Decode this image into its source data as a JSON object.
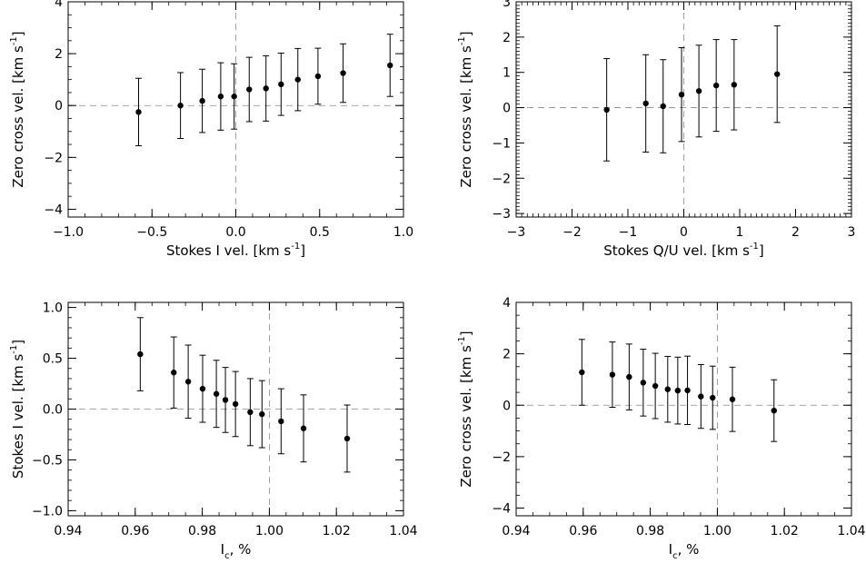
{
  "chart_data": [
    {
      "type": "scatter",
      "xlabel": "Stokes I vel. [km s",
      "xlabel_sup": "-1",
      "xlabel_end": "]",
      "ylabel": "Zero cross vel. [km s",
      "ylabel_sup": "-1",
      "ylabel_end": "]",
      "xlim": [
        -1.0,
        1.0
      ],
      "ylim": [
        -4.3,
        4.0
      ],
      "xticks": [
        -1.0,
        -0.5,
        0.0,
        0.5,
        1.0
      ],
      "xtick_labels": [
        "−1.0",
        "−0.5",
        "0.0",
        "0.5",
        "1.0"
      ],
      "yticks": [
        -4,
        -2,
        0,
        2,
        4
      ],
      "ytick_labels": [
        "−4",
        "−2",
        "0",
        "2",
        "4"
      ],
      "x_minor": 0.1,
      "y_minor": 0.5,
      "ref_x": 0,
      "ref_y": 0,
      "points": [
        {
          "x": -0.58,
          "y": -0.25,
          "err": 1.3
        },
        {
          "x": -0.33,
          "y": 0.0,
          "err": 1.27
        },
        {
          "x": -0.2,
          "y": 0.18,
          "err": 1.22
        },
        {
          "x": -0.09,
          "y": 0.35,
          "err": 1.3
        },
        {
          "x": -0.01,
          "y": 0.35,
          "err": 1.26
        },
        {
          "x": 0.08,
          "y": 0.62,
          "err": 1.24
        },
        {
          "x": 0.18,
          "y": 0.66,
          "err": 1.26
        },
        {
          "x": 0.27,
          "y": 0.82,
          "err": 1.2
        },
        {
          "x": 0.37,
          "y": 1.0,
          "err": 1.2
        },
        {
          "x": 0.49,
          "y": 1.13,
          "err": 1.08
        },
        {
          "x": 0.64,
          "y": 1.25,
          "err": 1.13
        },
        {
          "x": 0.92,
          "y": 1.55,
          "err": 1.2
        }
      ]
    },
    {
      "type": "scatter",
      "xlabel": "Stokes Q/U vel. [km s",
      "xlabel_sup": "-1",
      "xlabel_end": "]",
      "ylabel": "Zero cross vel. [km s",
      "ylabel_sup": "-1",
      "ylabel_end": "]",
      "xlim": [
        -3,
        3
      ],
      "ylim": [
        -3.1,
        3.0
      ],
      "xticks": [
        -3,
        -2,
        -1,
        0,
        1,
        2,
        3
      ],
      "xtick_labels": [
        "−3",
        "−2",
        "−1",
        "0",
        "1",
        "2",
        "3"
      ],
      "yticks": [
        -3,
        -2,
        -1,
        0,
        1,
        2,
        3
      ],
      "ytick_labels": [
        "−3",
        "−2",
        "−1",
        "0",
        "1",
        "2",
        "3"
      ],
      "x_minor": 0.1,
      "y_minor": 0.1,
      "ref_x": 0,
      "ref_y": 0,
      "points": [
        {
          "x": -1.38,
          "y": -0.06,
          "err": 1.45
        },
        {
          "x": -0.68,
          "y": 0.12,
          "err": 1.38
        },
        {
          "x": -0.37,
          "y": 0.04,
          "err": 1.32
        },
        {
          "x": -0.04,
          "y": 0.37,
          "err": 1.33
        },
        {
          "x": 0.27,
          "y": 0.47,
          "err": 1.3
        },
        {
          "x": 0.58,
          "y": 0.63,
          "err": 1.3
        },
        {
          "x": 0.9,
          "y": 0.65,
          "err": 1.28
        },
        {
          "x": 1.67,
          "y": 0.95,
          "err": 1.37
        }
      ]
    },
    {
      "type": "scatter",
      "xlabel": "I",
      "xlabel_sub": "c",
      "xlabel_end": ", %",
      "ylabel": "Stokes I vel. [km s",
      "ylabel_sup": "-1",
      "ylabel_end": "]",
      "xlim": [
        0.94,
        1.04
      ],
      "ylim": [
        -1.05,
        1.05
      ],
      "xticks": [
        0.94,
        0.96,
        0.98,
        1.0,
        1.02,
        1.04
      ],
      "xtick_labels": [
        "0.94",
        "0.96",
        "0.98",
        "1.00",
        "1.02",
        "1.04"
      ],
      "yticks": [
        -1.0,
        -0.5,
        0.0,
        0.5,
        1.0
      ],
      "ytick_labels": [
        "−1.0",
        "−0.5",
        "0.0",
        "0.5",
        "1.0"
      ],
      "x_minor": 0.005,
      "y_minor": 0.1,
      "ref_x": 1.0,
      "ref_y": 0,
      "points": [
        {
          "x": 0.9615,
          "y": 0.54,
          "err": 0.36
        },
        {
          "x": 0.9715,
          "y": 0.36,
          "err": 0.35
        },
        {
          "x": 0.9758,
          "y": 0.27,
          "err": 0.36
        },
        {
          "x": 0.9801,
          "y": 0.2,
          "err": 0.33
        },
        {
          "x": 0.9842,
          "y": 0.15,
          "err": 0.33
        },
        {
          "x": 0.9869,
          "y": 0.09,
          "err": 0.32
        },
        {
          "x": 0.9899,
          "y": 0.05,
          "err": 0.32
        },
        {
          "x": 0.9943,
          "y": -0.03,
          "err": 0.33
        },
        {
          "x": 0.9978,
          "y": -0.05,
          "err": 0.33
        },
        {
          "x": 1.0035,
          "y": -0.12,
          "err": 0.32
        },
        {
          "x": 1.0102,
          "y": -0.19,
          "err": 0.33
        },
        {
          "x": 1.0232,
          "y": -0.29,
          "err": 0.33
        }
      ]
    },
    {
      "type": "scatter",
      "xlabel": "I",
      "xlabel_sub": "c",
      "xlabel_end": ", %",
      "ylabel": "Zero cross vel. [km s",
      "ylabel_sup": "-1",
      "ylabel_end": "]",
      "xlim": [
        0.94,
        1.04
      ],
      "ylim": [
        -4.3,
        4.0
      ],
      "xticks": [
        0.94,
        0.96,
        0.98,
        1.0,
        1.02,
        1.04
      ],
      "xtick_labels": [
        "0.94",
        "0.96",
        "0.98",
        "1.00",
        "1.02",
        "1.04"
      ],
      "yticks": [
        -4,
        -2,
        0,
        2,
        4
      ],
      "ytick_labels": [
        "−4",
        "−2",
        "0",
        "2",
        "4"
      ],
      "x_minor": 0.005,
      "y_minor": 0.5,
      "ref_x": 1.0,
      "ref_y": 0,
      "points": [
        {
          "x": 0.9596,
          "y": 1.28,
          "err": 1.28
        },
        {
          "x": 0.9687,
          "y": 1.19,
          "err": 1.27
        },
        {
          "x": 0.9737,
          "y": 1.1,
          "err": 1.28
        },
        {
          "x": 0.9779,
          "y": 0.88,
          "err": 1.3
        },
        {
          "x": 0.9815,
          "y": 0.75,
          "err": 1.27
        },
        {
          "x": 0.9852,
          "y": 0.62,
          "err": 1.28
        },
        {
          "x": 0.9882,
          "y": 0.57,
          "err": 1.3
        },
        {
          "x": 0.9911,
          "y": 0.58,
          "err": 1.33
        },
        {
          "x": 0.9951,
          "y": 0.34,
          "err": 1.24
        },
        {
          "x": 0.9986,
          "y": 0.29,
          "err": 1.23
        },
        {
          "x": 1.0045,
          "y": 0.23,
          "err": 1.25
        },
        {
          "x": 1.0169,
          "y": -0.21,
          "err": 1.2
        }
      ]
    }
  ]
}
